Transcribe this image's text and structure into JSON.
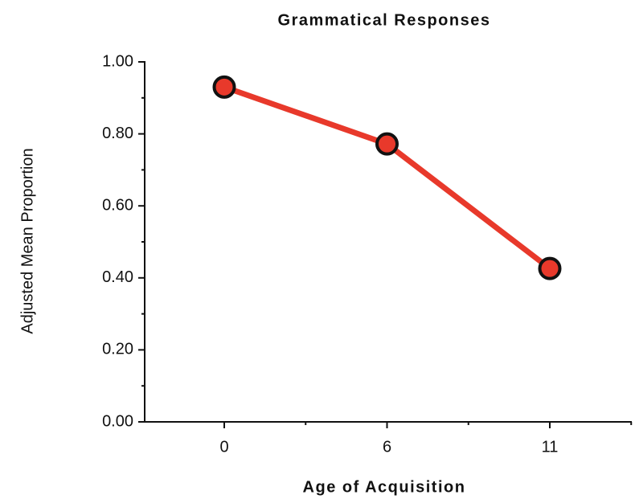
{
  "chart_data": {
    "type": "line",
    "title": "Grammatical Responses",
    "x_label": "Age of Acquisition",
    "y_label": "Adjusted Mean Proportion",
    "categories": [
      "0",
      "6",
      "11"
    ],
    "series": [
      {
        "name": "Grammatical",
        "color": "#e8392b",
        "values": [
          0.93,
          0.772,
          0.426
        ]
      }
    ],
    "ylim": [
      0,
      1
    ],
    "yticks": [
      {
        "value": 0,
        "label": "0.00"
      },
      {
        "value": 0.2,
        "label": "0.20"
      },
      {
        "value": 0.4,
        "label": "0.40"
      },
      {
        "value": 0.6,
        "label": "0.60"
      },
      {
        "value": 0.8,
        "label": "0.80"
      },
      {
        "value": 1,
        "label": "1.00"
      }
    ],
    "grid": false
  }
}
